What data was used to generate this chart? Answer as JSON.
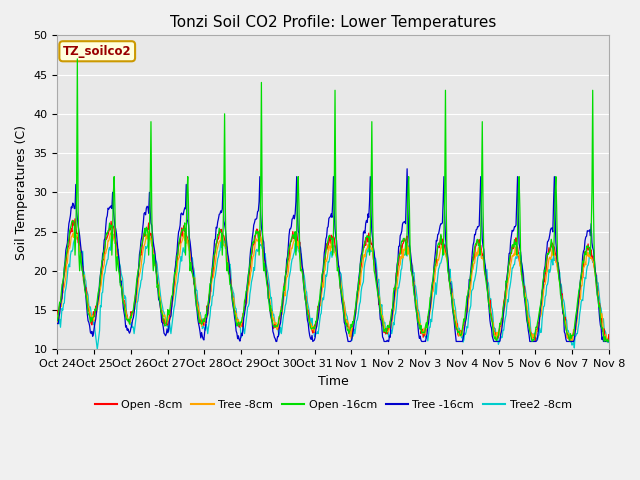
{
  "title": "Tonzi Soil CO2 Profile: Lower Temperatures",
  "xlabel": "Time",
  "ylabel": "Soil Temperatures (C)",
  "ylim": [
    10,
    50
  ],
  "legend_label": "TZ_soilco2",
  "series_colors": {
    "open8": "#ff0000",
    "tree8": "#ffa500",
    "open16": "#00dd00",
    "tree16": "#0000cc",
    "tree2_8": "#00cccc"
  },
  "series_names": [
    "Open -8cm",
    "Tree -8cm",
    "Open -16cm",
    "Tree -16cm",
    "Tree2 -8cm"
  ],
  "xtick_labels": [
    "Oct 24",
    "Oct 25",
    "Oct 26",
    "Oct 27",
    "Oct 28",
    "Oct 29",
    "Oct 30",
    "Oct 31",
    "Nov 1",
    "Nov 2",
    "Nov 3",
    "Nov 4",
    "Nov 5",
    "Nov 6",
    "Nov 7",
    "Nov 8"
  ],
  "ytick_labels": [
    "10",
    "15",
    "20",
    "25",
    "30",
    "35",
    "40",
    "45",
    "50"
  ],
  "fig_bg": "#f0f0f0",
  "plot_bg": "#e8e8e8",
  "grid_color": "#ffffff",
  "title_fontsize": 11,
  "tick_fontsize": 8,
  "label_fontsize": 9,
  "legend_fontsize": 8
}
